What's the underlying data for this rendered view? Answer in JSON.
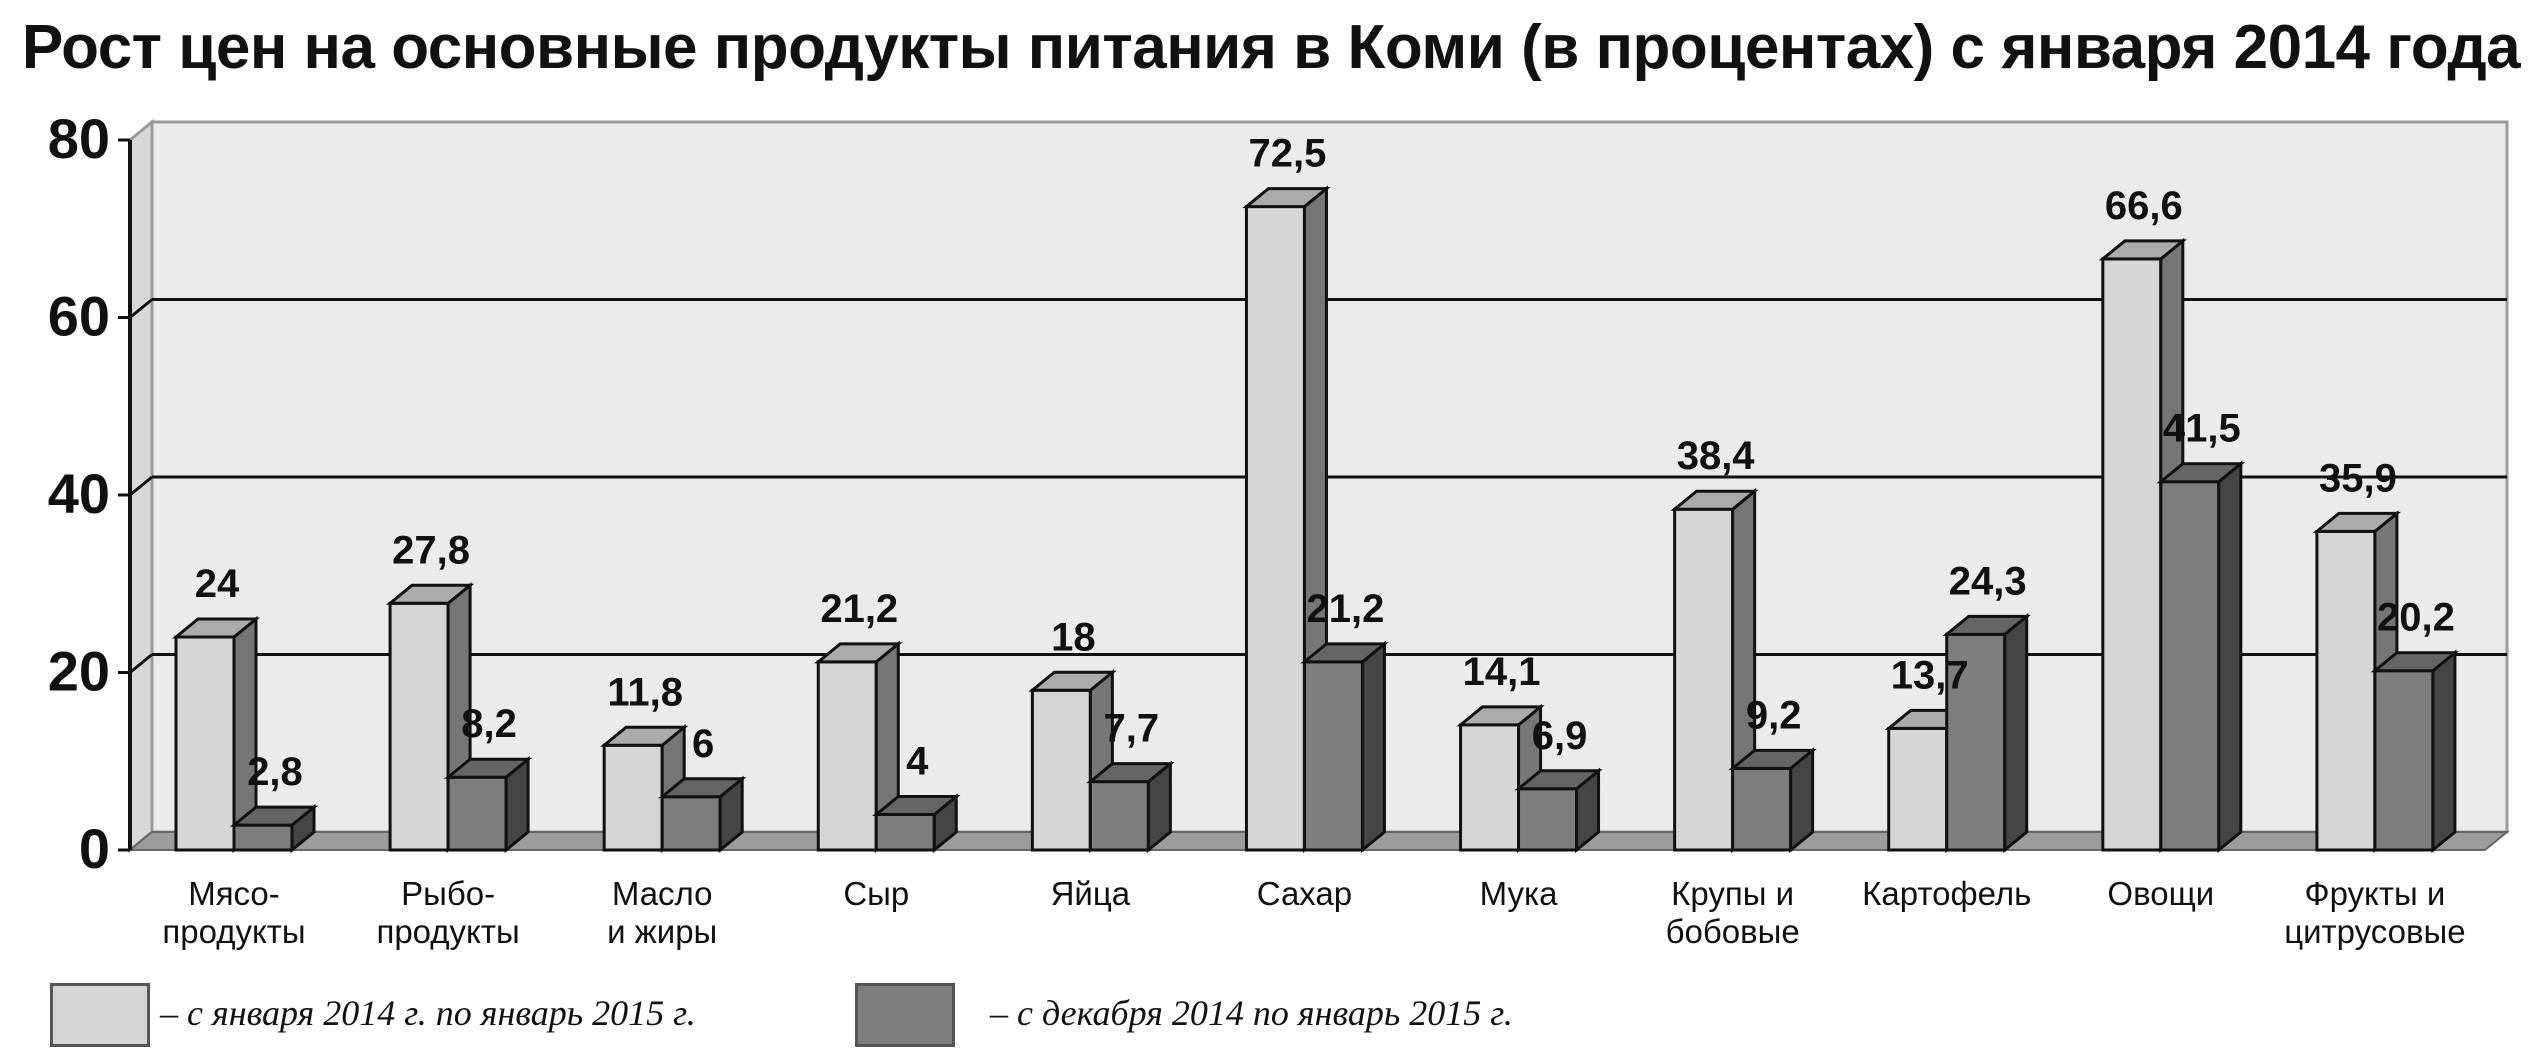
{
  "chart_data": {
    "type": "bar",
    "title": "Рост цен на основные продукты питания в Коми (в процентах) с января 2014 года",
    "xlabel": "",
    "ylabel": "",
    "ylim": [
      0,
      80
    ],
    "yticks": [
      "0",
      "20",
      "40",
      "60",
      "80"
    ],
    "grid": true,
    "legend_position": "bottom",
    "categories": [
      [
        "Мясо-",
        "продукты"
      ],
      [
        "Рыбо-",
        "продукты"
      ],
      [
        "Масло",
        "и жиры"
      ],
      [
        "Сыр"
      ],
      [
        "Яйца"
      ],
      [
        "Сахар"
      ],
      [
        "Мука"
      ],
      [
        "Крупы и",
        "бобовые"
      ],
      [
        "Картофель"
      ],
      [
        "Овощи"
      ],
      [
        "Фрукты и",
        "цитрусовые"
      ]
    ],
    "series": [
      {
        "name": "– с января 2014 г. по январь 2015 г.",
        "values": [
          24,
          27.8,
          11.8,
          21.2,
          18,
          72.5,
          14.1,
          38.4,
          13.7,
          66.6,
          35.9
        ],
        "labels": [
          "24",
          "27,8",
          "11,8",
          "21,2",
          "18",
          "72,5",
          "14,1",
          "38,4",
          "13,7",
          "66,6",
          "35,9"
        ],
        "color": "#d6d6d6"
      },
      {
        "name": "– с декабря 2014 по январь 2015 г.",
        "values": [
          2.8,
          8.2,
          6,
          4,
          7.7,
          21.2,
          6.9,
          9.2,
          24.3,
          41.5,
          20.2
        ],
        "labels": [
          "2,8",
          "8,2",
          "6",
          "4",
          "7,7",
          "21,2",
          "6,9",
          "9,2",
          "24,3",
          "41,5",
          "20,2"
        ],
        "color": "#7e7e7e"
      }
    ]
  }
}
